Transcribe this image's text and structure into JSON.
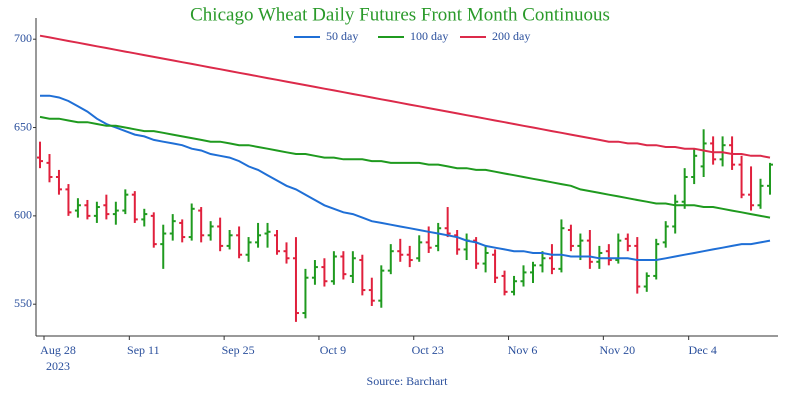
{
  "chart_data": {
    "type": "ohlc",
    "title": "Chicago Wheat Daily Futures Front Month Continuous",
    "source": "Source: Barchart",
    "x": [
      "2023-08-28",
      "2023-08-29",
      "2023-08-30",
      "2023-08-31",
      "2023-09-01",
      "2023-09-05",
      "2023-09-06",
      "2023-09-07",
      "2023-09-08",
      "2023-09-11",
      "2023-09-12",
      "2023-09-13",
      "2023-09-14",
      "2023-09-15",
      "2023-09-18",
      "2023-09-19",
      "2023-09-20",
      "2023-09-21",
      "2023-09-22",
      "2023-09-25",
      "2023-09-26",
      "2023-09-27",
      "2023-09-28",
      "2023-09-29",
      "2023-10-02",
      "2023-10-03",
      "2023-10-04",
      "2023-10-05",
      "2023-10-06",
      "2023-10-09",
      "2023-10-10",
      "2023-10-11",
      "2023-10-12",
      "2023-10-13",
      "2023-10-16",
      "2023-10-17",
      "2023-10-18",
      "2023-10-19",
      "2023-10-20",
      "2023-10-23",
      "2023-10-24",
      "2023-10-25",
      "2023-10-26",
      "2023-10-27",
      "2023-10-30",
      "2023-10-31",
      "2023-11-01",
      "2023-11-02",
      "2023-11-03",
      "2023-11-06",
      "2023-11-07",
      "2023-11-08",
      "2023-11-09",
      "2023-11-10",
      "2023-11-13",
      "2023-11-14",
      "2023-11-15",
      "2023-11-16",
      "2023-11-17",
      "2023-11-20",
      "2023-11-21",
      "2023-11-22",
      "2023-11-24",
      "2023-11-27",
      "2023-11-28",
      "2023-11-29",
      "2023-11-30",
      "2023-12-01",
      "2023-12-04",
      "2023-12-05",
      "2023-12-06",
      "2023-12-07",
      "2023-12-08",
      "2023-12-11",
      "2023-12-12",
      "2023-12-13",
      "2023-12-14",
      "2023-12-15"
    ],
    "open": [
      633,
      630,
      622,
      615,
      603,
      606,
      600,
      606,
      601,
      603,
      612,
      598,
      600,
      584,
      590,
      596,
      588,
      603,
      589,
      594,
      583,
      589,
      578,
      585,
      590,
      589,
      580,
      576,
      545,
      565,
      571,
      563,
      577,
      566,
      575,
      558,
      552,
      569,
      580,
      578,
      576,
      585,
      583,
      593,
      589,
      581,
      586,
      573,
      578,
      566,
      557,
      563,
      568,
      572,
      576,
      570,
      592,
      583,
      586,
      574,
      580,
      575,
      587,
      583,
      560,
      566,
      585,
      594,
      608,
      622,
      628,
      641,
      632,
      640,
      629,
      612,
      606,
      617
    ],
    "high": [
      642,
      635,
      626,
      618,
      610,
      609,
      608,
      612,
      608,
      615,
      614,
      604,
      602,
      595,
      601,
      598,
      607,
      605,
      597,
      599,
      592,
      594,
      588,
      596,
      596,
      592,
      585,
      588,
      570,
      575,
      576,
      580,
      580,
      580,
      578,
      565,
      572,
      584,
      587,
      583,
      589,
      594,
      596,
      605,
      592,
      590,
      588,
      583,
      581,
      569,
      566,
      572,
      574,
      580,
      584,
      598,
      595,
      590,
      592,
      583,
      584,
      590,
      590,
      588,
      568,
      587,
      597,
      612,
      627,
      638,
      649,
      645,
      645,
      645,
      634,
      628,
      621,
      630
    ],
    "low": [
      627,
      619,
      612,
      600,
      599,
      598,
      596,
      598,
      595,
      601,
      596,
      594,
      582,
      570,
      586,
      585,
      586,
      585,
      586,
      580,
      581,
      576,
      574,
      582,
      582,
      578,
      573,
      540,
      542,
      561,
      560,
      561,
      564,
      562,
      555,
      549,
      548,
      567,
      574,
      571,
      574,
      579,
      580,
      588,
      578,
      575,
      570,
      568,
      562,
      555,
      555,
      560,
      562,
      568,
      567,
      568,
      580,
      575,
      570,
      570,
      572,
      573,
      580,
      556,
      557,
      564,
      582,
      590,
      604,
      618,
      622,
      629,
      628,
      626,
      610,
      603,
      604,
      612
    ],
    "close": [
      631,
      622,
      615,
      602,
      606,
      600,
      605,
      601,
      603,
      612,
      598,
      601,
      584,
      590,
      597,
      588,
      604,
      589,
      594,
      583,
      589,
      578,
      585,
      589,
      591,
      580,
      576,
      545,
      565,
      571,
      563,
      577,
      567,
      576,
      558,
      552,
      569,
      580,
      578,
      575,
      585,
      582,
      593,
      590,
      581,
      586,
      573,
      579,
      565,
      557,
      563,
      568,
      572,
      576,
      570,
      593,
      583,
      586,
      574,
      579,
      575,
      586,
      583,
      560,
      566,
      584,
      594,
      608,
      622,
      634,
      641,
      632,
      640,
      629,
      612,
      606,
      617,
      629
    ],
    "up_color": "#1f9a1f",
    "down_color": "#e0203c",
    "series": [
      {
        "name": "50 day",
        "color": "#1f6fd6",
        "values": [
          668,
          668,
          667,
          665,
          662,
          659,
          655,
          652,
          650,
          648,
          646,
          645,
          643,
          642,
          641,
          640,
          638,
          637,
          635,
          634,
          633,
          631,
          628,
          626,
          623,
          620,
          617,
          615,
          612,
          609,
          606,
          604,
          602,
          601,
          599,
          597,
          596,
          595,
          594,
          593,
          592,
          591,
          590,
          589,
          588,
          586,
          585,
          583,
          582,
          581,
          580,
          580,
          579,
          579,
          578,
          578,
          577,
          577,
          577,
          576,
          576,
          576,
          576,
          575,
          575,
          575,
          576,
          577,
          578,
          579,
          580,
          581,
          582,
          583,
          584,
          584,
          585,
          586
        ]
      },
      {
        "name": "100 day",
        "color": "#1f9a1f",
        "values": [
          656,
          655,
          655,
          654,
          653,
          653,
          652,
          651,
          651,
          650,
          649,
          648,
          648,
          647,
          646,
          645,
          644,
          643,
          642,
          642,
          641,
          640,
          640,
          639,
          638,
          637,
          636,
          635,
          635,
          634,
          633,
          633,
          632,
          632,
          632,
          631,
          631,
          630,
          630,
          630,
          630,
          629,
          629,
          628,
          627,
          627,
          626,
          626,
          625,
          624,
          623,
          622,
          621,
          620,
          619,
          618,
          617,
          615,
          614,
          613,
          612,
          611,
          610,
          609,
          608,
          607,
          607,
          606,
          606,
          606,
          605,
          605,
          604,
          603,
          602,
          601,
          600,
          599
        ]
      },
      {
        "name": "200 day",
        "color": "#dc2a4a",
        "values": [
          702,
          701,
          700,
          699,
          698,
          697,
          696,
          695,
          694,
          693,
          692,
          691,
          690,
          689,
          688,
          687,
          686,
          685,
          684,
          683,
          682,
          681,
          680,
          679,
          678,
          677,
          676,
          675,
          674,
          673,
          672,
          671,
          670,
          669,
          668,
          667,
          666,
          665,
          664,
          663,
          662,
          661,
          660,
          659,
          658,
          657,
          656,
          655,
          654,
          653,
          652,
          651,
          650,
          649,
          648,
          647,
          646,
          645,
          644,
          643,
          642,
          642,
          641,
          641,
          640,
          640,
          639,
          639,
          638,
          638,
          637,
          636,
          636,
          635,
          635,
          634,
          634,
          633
        ]
      }
    ],
    "ylim": [
      532,
      712
    ],
    "yticks": [
      550,
      600,
      650,
      700
    ],
    "xticks": [
      {
        "value": "2023-08-28",
        "label": "Aug 28"
      },
      {
        "value": "2023-09-11",
        "label": "Sep 11"
      },
      {
        "value": "2023-09-25",
        "label": "Sep 25"
      },
      {
        "value": "2023-10-09",
        "label": "Oct 9"
      },
      {
        "value": "2023-10-23",
        "label": "Oct 23"
      },
      {
        "value": "2023-11-06",
        "label": "Nov 6"
      },
      {
        "value": "2023-11-20",
        "label": "Nov 20"
      },
      {
        "value": "2023-12-04",
        "label": "Dec 4"
      }
    ],
    "xtick_sublabel": "2023",
    "grid": false,
    "legend_position": "top"
  }
}
